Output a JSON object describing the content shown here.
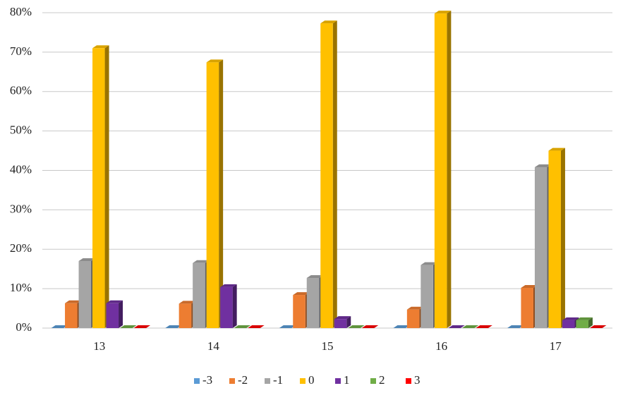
{
  "chart_data": {
    "type": "bar3d",
    "categories": [
      "13",
      "14",
      "15",
      "16",
      "17"
    ],
    "series": [
      {
        "name": "-3",
        "color": "#5b9bd5",
        "values": [
          0,
          0,
          0,
          0,
          0
        ]
      },
      {
        "name": "-2",
        "color": "#ed7d31",
        "values": [
          6.3,
          6.2,
          8.4,
          4.7,
          10.2
        ]
      },
      {
        "name": "-1",
        "color": "#a5a5a5",
        "values": [
          17,
          16.5,
          12.7,
          16,
          40.8
        ]
      },
      {
        "name": "0",
        "color": "#ffc000",
        "values": [
          71,
          67.4,
          77.3,
          79.8,
          45
        ]
      },
      {
        "name": "1",
        "color": "#7030a0",
        "values": [
          6.3,
          10.4,
          2.3,
          0,
          2
        ]
      },
      {
        "name": "2",
        "color": "#70ad47",
        "values": [
          0,
          0,
          0,
          0,
          2
        ]
      },
      {
        "name": "3",
        "color": "#ff0000",
        "values": [
          0,
          0,
          0,
          0,
          0
        ]
      }
    ],
    "ylim": [
      0,
      80
    ],
    "yticks": [
      {
        "value": 0,
        "label": "0%"
      },
      {
        "value": 10,
        "label": "10%"
      },
      {
        "value": 20,
        "label": "20%"
      },
      {
        "value": 30,
        "label": "30%"
      },
      {
        "value": 40,
        "label": "40%"
      },
      {
        "value": 50,
        "label": "50%"
      },
      {
        "value": 60,
        "label": "60%"
      },
      {
        "value": 70,
        "label": "70%"
      },
      {
        "value": 80,
        "label": "80%"
      }
    ],
    "grid": true,
    "legend": "bottom"
  }
}
